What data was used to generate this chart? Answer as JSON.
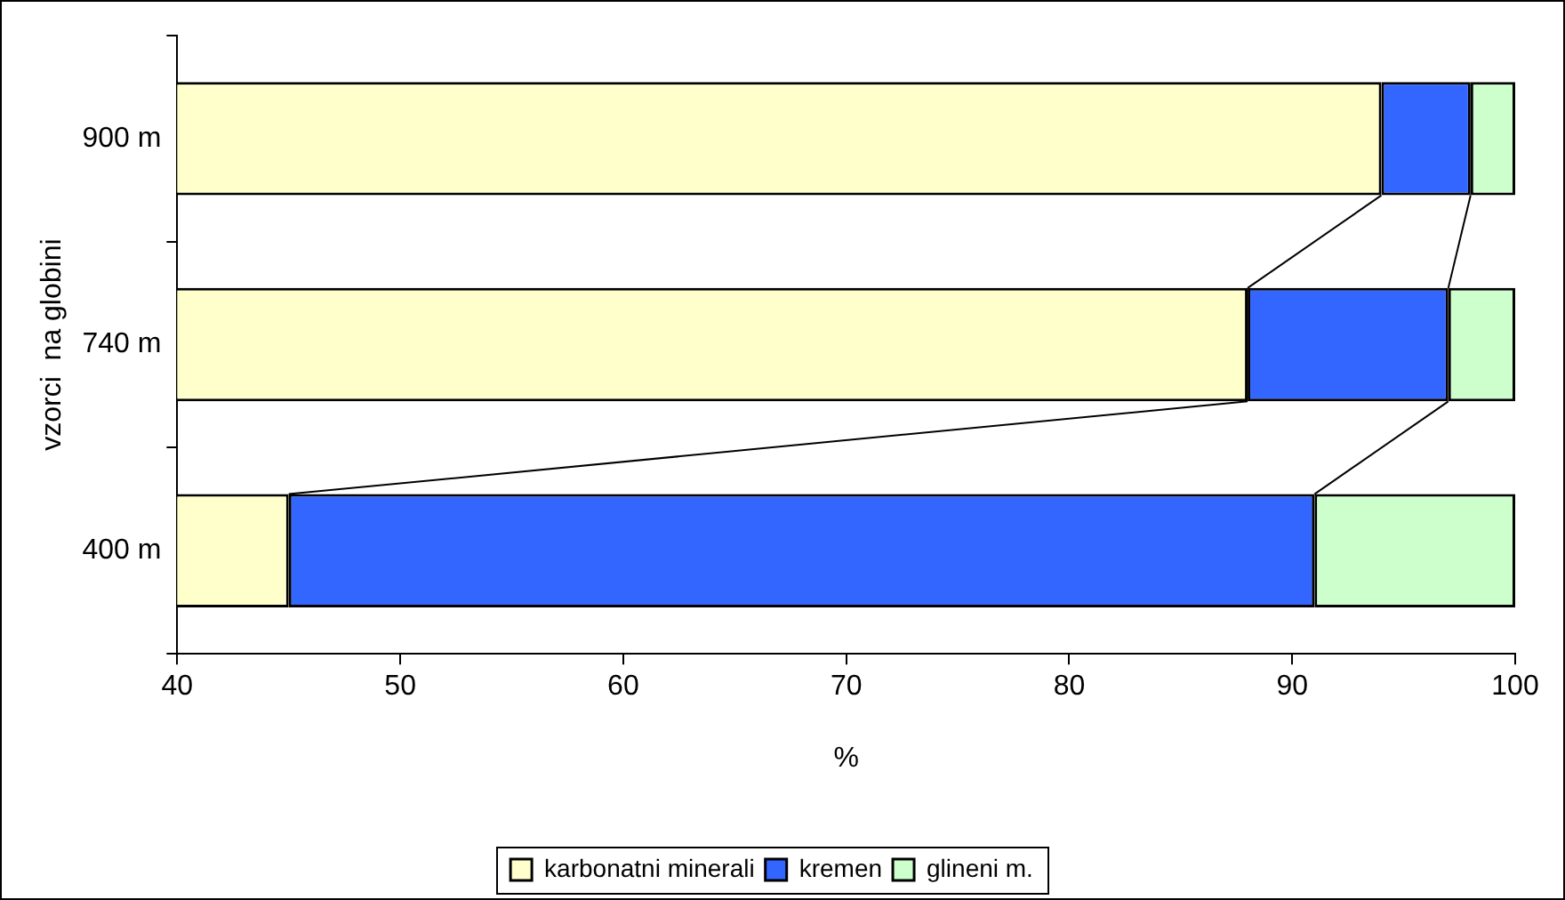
{
  "chart_data": {
    "type": "bar",
    "orientation": "horizontal",
    "categories": [
      "900 m",
      "740 m",
      "400 m"
    ],
    "series": [
      {
        "name": "karbonatni minerali",
        "color": "#ffffcc",
        "base": [
          0,
          0,
          0
        ],
        "values": [
          94,
          88,
          45
        ]
      },
      {
        "name": "kremen",
        "color": "#3366ff",
        "base": [
          94,
          88,
          45
        ],
        "values": [
          4,
          9,
          46
        ]
      },
      {
        "name": "glineni m.",
        "color": "#ccffcc",
        "base": [
          98,
          97,
          91
        ],
        "values": [
          2,
          3,
          9
        ]
      }
    ],
    "xlim": [
      40,
      100
    ],
    "xticks": [
      40,
      50,
      60,
      70,
      80,
      90,
      100
    ],
    "xlabel": "%",
    "ylabel": "vzorci  na globini",
    "grid": false,
    "legend": "bottom"
  }
}
